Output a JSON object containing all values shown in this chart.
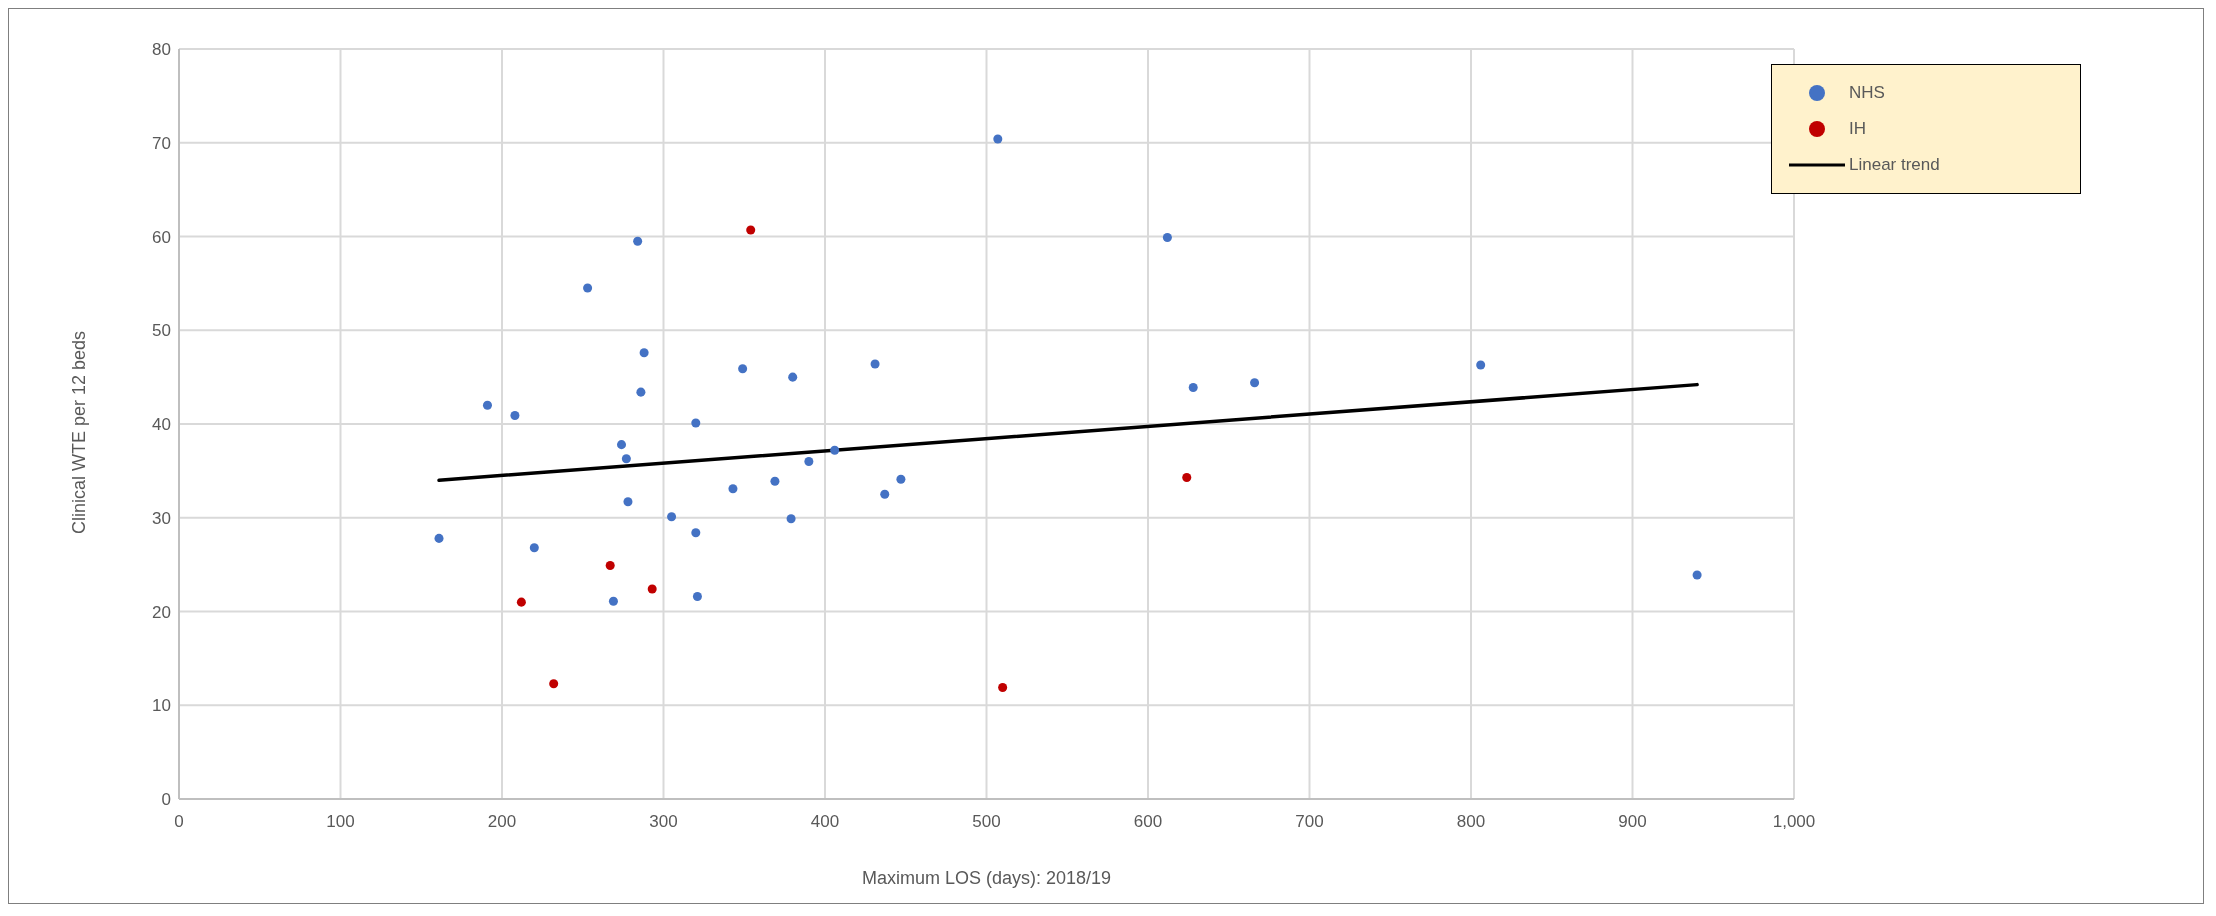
{
  "chart_data": {
    "type": "scatter",
    "xlabel": "Maximum LOS (days): 2018/19",
    "ylabel": "Clinical WTE per 12 beds",
    "xlim": [
      0,
      1000
    ],
    "xticks": [
      0,
      100,
      200,
      300,
      400,
      500,
      600,
      700,
      800,
      900,
      {
        "value": 1000,
        "label": "1,000"
      }
    ],
    "ylim": [
      0,
      80
    ],
    "yticks": [
      0,
      10,
      20,
      30,
      40,
      50,
      60,
      70,
      80
    ],
    "grid": true,
    "legend": "top right",
    "marker": "circle",
    "series": [
      {
        "name": "NHS",
        "color": "#4472c4",
        "x": [
          161,
          191,
          208,
          220,
          253,
          269,
          274,
          277,
          278,
          284,
          286,
          288,
          305,
          320,
          320,
          321,
          343,
          349,
          369,
          379,
          380,
          390,
          406,
          431,
          437,
          447,
          507,
          612,
          628,
          666,
          806,
          940
        ],
        "values": [
          27.8,
          42.0,
          40.9,
          26.8,
          54.5,
          21.1,
          37.8,
          36.3,
          31.7,
          59.5,
          43.4,
          47.6,
          30.1,
          40.1,
          28.4,
          21.6,
          33.1,
          45.9,
          33.9,
          29.9,
          45.0,
          36.0,
          37.2,
          46.4,
          32.5,
          34.1,
          70.4,
          59.9,
          43.9,
          44.4,
          46.3,
          23.9
        ]
      },
      {
        "name": "IH",
        "color": "#c00000",
        "x": [
          212,
          232,
          267,
          293,
          354,
          510,
          624
        ],
        "values": [
          21.0,
          12.3,
          24.9,
          22.4,
          60.7,
          11.9,
          34.3
        ]
      },
      {
        "name": "Linear trend",
        "type": "line",
        "color": "#000000",
        "line_style": "solid",
        "marker": "none",
        "x": [
          161,
          940
        ],
        "values": [
          34.0,
          44.2
        ]
      }
    ]
  }
}
